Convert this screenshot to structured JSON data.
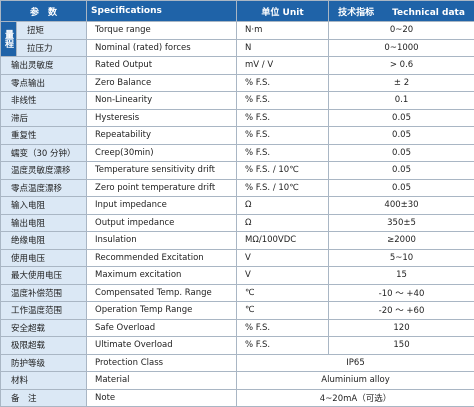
{
  "table": {
    "header": [
      "参　数",
      "Specifications",
      "单位 Unit",
      "技术指标　　Technical data"
    ],
    "range_group": {
      "label": "量程",
      "rows": [
        {
          "param": "扭矩",
          "spec": "Torque range",
          "unit": "N·m",
          "value": "0~20"
        },
        {
          "param": "拉压力",
          "spec": "Nominal (rated) forces",
          "unit": "N",
          "value": "0~1000"
        }
      ]
    },
    "rows": [
      {
        "param": "输出灵敏度",
        "spec": "Rated Output",
        "unit": "mV / V",
        "value": "> 0.6"
      },
      {
        "param": "零点输出",
        "spec": "Zero Balance",
        "unit": "% F.S.",
        "value": "± 2"
      },
      {
        "param": "非线性",
        "spec": "Non-Linearity",
        "unit": "% F.S.",
        "value": "0.1"
      },
      {
        "param": "滞后",
        "spec": "Hysteresis",
        "unit": "% F.S.",
        "value": "0.05"
      },
      {
        "param": "重复性",
        "spec": "Repeatability",
        "unit": "% F.S.",
        "value": "0.05"
      },
      {
        "param": "蠕变（30 分钟）",
        "spec": "Creep(30min)",
        "unit": "% F.S.",
        "value": "0.05"
      },
      {
        "param": "温度灵敏度漂移",
        "spec": "Temperature sensitivity drift",
        "unit": "% F.S. / 10℃",
        "value": "0.05"
      },
      {
        "param": "零点温度漂移",
        "spec": "Zero point temperature drift",
        "unit": "% F.S. / 10℃",
        "value": "0.05"
      },
      {
        "param": "输入电阻",
        "spec": "Input impedance",
        "unit": "Ω",
        "value": "400±30"
      },
      {
        "param": "输出电阻",
        "spec": "Output impedance",
        "unit": "Ω",
        "value": "350±5"
      },
      {
        "param": "绝缘电阻",
        "spec": "Insulation",
        "unit": "MΩ/100VDC",
        "value": "≥2000"
      },
      {
        "param": "使用电压",
        "spec": "Recommended Excitation",
        "unit": "V",
        "value": "5~10"
      },
      {
        "param": "最大使用电压",
        "spec": "Maximum excitation",
        "unit": "V",
        "value": "15"
      },
      {
        "param": "温度补偿范围",
        "spec": "Compensated Temp. Range",
        "unit": "℃",
        "value": "-10 ～ +40"
      },
      {
        "param": "工作温度范围",
        "spec": "Operation Temp Range",
        "unit": "℃",
        "value": "-20 ～ +60"
      },
      {
        "param": "安全超载",
        "spec": "Safe Overload",
        "unit": "% F.S.",
        "value": "120"
      },
      {
        "param": "极限超载",
        "spec": "Ultimate Overload",
        "unit": "% F.S.",
        "value": "150"
      },
      {
        "param": "防护等级",
        "spec": "Protection Class",
        "value": "IP65"
      },
      {
        "param": "材料",
        "spec": "Material",
        "value": "Aluminium alloy"
      },
      {
        "param": "备　注",
        "spec": "Note",
        "value": "4~20mA（可选）"
      }
    ]
  }
}
